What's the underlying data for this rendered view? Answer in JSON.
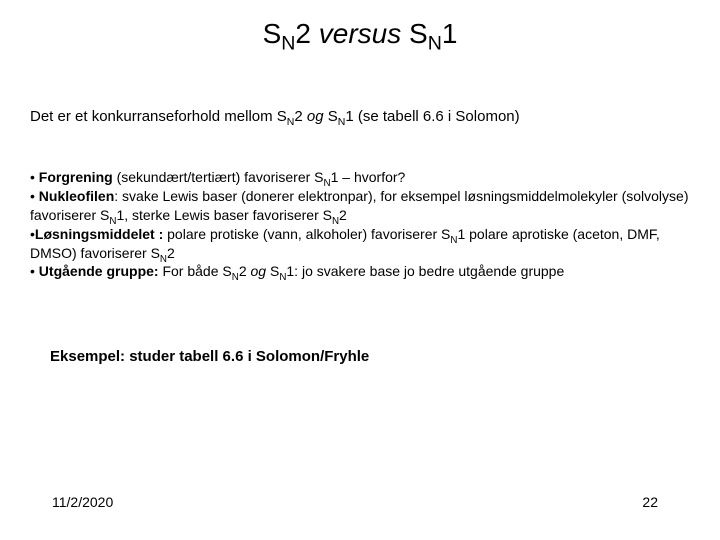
{
  "title": {
    "parts": [
      "S",
      "N",
      "2 ",
      "versus",
      " S",
      "N",
      "1"
    ]
  },
  "intro": {
    "prefix": "Det er et konkurranseforhold mellom S",
    "sub1": "N",
    "mid1": "2 ",
    "og": "og",
    "mid2": " S",
    "sub2": "N",
    "suffix": "1 (se tabell 6.6 i Solomon)"
  },
  "bullets": [
    {
      "lead_bold": "Forgrening",
      "rest1": " (sekundært/tertiært) favoriserer S",
      "sub1": "N",
      "rest2": "1 – hvorfor?"
    },
    {
      "lead_bold": "Nukleofilen",
      "rest1": ": svake Lewis baser (donerer elektronpar), for eksempel løsningsmiddelmolekyler (solvolyse) favoriserer S",
      "sub1": "N",
      "rest2": "1,  sterke Lewis baser favoriserer S",
      "sub2": "N",
      "rest3": "2"
    },
    {
      "lead_bold": "Løsningsmiddelet :",
      "rest1": " polare protiske (vann, alkoholer) favoriserer S",
      "sub1": "N",
      "rest2": "1 polare aprotiske (aceton, DMF, DMSO) favoriserer S",
      "sub2": "N",
      "rest3": "2"
    },
    {
      "lead_bold": "Utgående gruppe:",
      "rest1": " For både S",
      "sub1": "N",
      "rest2": "2 ",
      "og": "og",
      "rest3": " S",
      "sub2": "N",
      "rest4": "1:   jo svakere base jo bedre utgående gruppe"
    }
  ],
  "example": "Eksempel: studer tabell 6.6 i Solomon/Fryhle",
  "date": "11/2/2020",
  "pagenum": "22",
  "style": {
    "background_color": "#ffffff",
    "text_color": "#000000",
    "title_fontsize": 28,
    "intro_fontsize": 15,
    "bullet_fontsize": 14,
    "footer_fontsize": 14,
    "font_family": "Arial"
  }
}
